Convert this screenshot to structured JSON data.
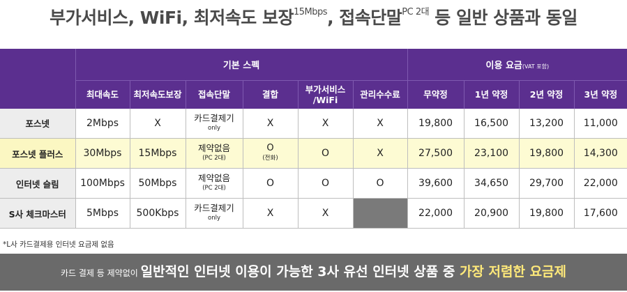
{
  "title": {
    "part1": "부가서비스, WiFi, 최저속도 보장",
    "sup1": "15Mbps",
    "part2": ", 접속단말",
    "sup2": "PC 2대",
    "part3": " 등 일반 상품과 동일"
  },
  "table": {
    "group_basic": "기본 스펙",
    "group_fee": "이용 요금",
    "group_fee_note": "(VAT 포함)",
    "columns": {
      "max_speed": "최대속도",
      "min_speed": "최저속도보장",
      "device": "접속단말",
      "bundle": "결합",
      "extra_1": "부가서비스",
      "extra_2": "/WiFi",
      "mgmt_fee": "관리수수료",
      "no_contract": "무약정",
      "y1": "1년 약정",
      "y2": "2년 약정",
      "y3": "3년 약정"
    },
    "rows": [
      {
        "name": "포스넷",
        "max_speed": "2Mbps",
        "min_speed": "X",
        "device_main": "카드결제기",
        "device_sub": "only",
        "bundle_main": "X",
        "bundle_sub": "",
        "extra": "X",
        "mgmt_fee": "X",
        "prices": [
          "19,800",
          "16,500",
          "13,200",
          "11,000"
        ]
      },
      {
        "name": "포스넷 플러스",
        "max_speed": "30Mbps",
        "min_speed": "15Mbps",
        "device_main": "제약없음",
        "device_sub": "(PC 2대)",
        "bundle_main": "O",
        "bundle_sub": "(전화)",
        "extra": "O",
        "mgmt_fee": "X",
        "prices": [
          "27,500",
          "23,100",
          "19,800",
          "14,300"
        ]
      },
      {
        "name": "인터넷 슬림",
        "max_speed": "100Mbps",
        "min_speed": "50Mbps",
        "device_main": "제약없음",
        "device_sub": "(PC 2대)",
        "bundle_main": "O",
        "bundle_sub": "",
        "extra": "O",
        "mgmt_fee": "O",
        "prices": [
          "39,600",
          "34,650",
          "29,700",
          "22,000"
        ]
      },
      {
        "name": "S사 체크마스터",
        "max_speed": "5Mbps",
        "min_speed": "500Kbps",
        "device_main": "카드결제기",
        "device_sub": "only",
        "bundle_main": "X",
        "bundle_sub": "",
        "extra": "X",
        "mgmt_fee": "",
        "prices": [
          "22,000",
          "20,900",
          "19,800",
          "17,600"
        ]
      }
    ]
  },
  "note": "*L사 카드결제용 인터넷 요금제 없음",
  "banner": {
    "small": "카드 결제 등 제약없이 ",
    "main": "일반적인 인터넷 이용이 가능한 3사 유선 인터넷 상품 중 ",
    "accent": "가장 저렴한 요금제"
  }
}
